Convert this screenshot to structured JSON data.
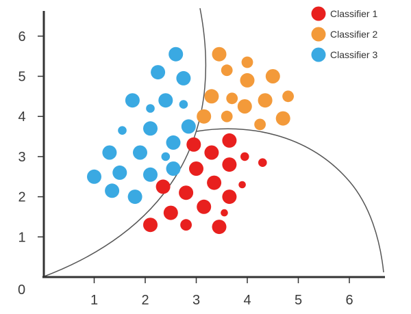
{
  "chart_data": {
    "type": "scatter",
    "title": "",
    "xlabel": "",
    "ylabel": "",
    "xlim": [
      0,
      6.7
    ],
    "ylim": [
      0,
      6.7
    ],
    "x_ticks": [
      "1",
      "2",
      "3",
      "4",
      "5",
      "6"
    ],
    "y_ticks": [
      "1",
      "2",
      "3",
      "4",
      "5",
      "6"
    ],
    "origin_label": "0",
    "grid": false,
    "legend_position": "top-right",
    "series": [
      {
        "name": "Classifier 1",
        "color": "#e8201e",
        "points": [
          {
            "x": 2.95,
            "y": 3.3,
            "s": 1.0
          },
          {
            "x": 3.3,
            "y": 3.1,
            "s": 1.0
          },
          {
            "x": 3.65,
            "y": 3.4,
            "s": 1.0
          },
          {
            "x": 3.95,
            "y": 3.0,
            "s": 0.6
          },
          {
            "x": 4.3,
            "y": 2.85,
            "s": 0.6
          },
          {
            "x": 3.0,
            "y": 2.7,
            "s": 1.0
          },
          {
            "x": 3.65,
            "y": 2.8,
            "s": 1.0
          },
          {
            "x": 2.35,
            "y": 2.25,
            "s": 1.0
          },
          {
            "x": 2.8,
            "y": 2.1,
            "s": 1.0
          },
          {
            "x": 3.35,
            "y": 2.35,
            "s": 1.0
          },
          {
            "x": 3.9,
            "y": 2.3,
            "s": 0.5
          },
          {
            "x": 3.65,
            "y": 2.0,
            "s": 1.0
          },
          {
            "x": 2.5,
            "y": 1.6,
            "s": 1.0
          },
          {
            "x": 3.15,
            "y": 1.75,
            "s": 1.0
          },
          {
            "x": 3.55,
            "y": 1.6,
            "s": 0.5
          },
          {
            "x": 2.1,
            "y": 1.3,
            "s": 1.0
          },
          {
            "x": 2.8,
            "y": 1.3,
            "s": 0.8
          },
          {
            "x": 3.45,
            "y": 1.25,
            "s": 1.0
          }
        ]
      },
      {
        "name": "Classifier 2",
        "color": "#f39a3a",
        "points": [
          {
            "x": 3.45,
            "y": 5.55,
            "s": 1.0
          },
          {
            "x": 4.0,
            "y": 5.35,
            "s": 0.8
          },
          {
            "x": 3.6,
            "y": 5.15,
            "s": 0.8
          },
          {
            "x": 4.5,
            "y": 5.0,
            "s": 1.0
          },
          {
            "x": 4.0,
            "y": 4.9,
            "s": 1.0
          },
          {
            "x": 3.3,
            "y": 4.5,
            "s": 1.0
          },
          {
            "x": 3.7,
            "y": 4.45,
            "s": 0.8
          },
          {
            "x": 4.35,
            "y": 4.4,
            "s": 1.0
          },
          {
            "x": 4.8,
            "y": 4.5,
            "s": 0.8
          },
          {
            "x": 3.95,
            "y": 4.25,
            "s": 1.0
          },
          {
            "x": 3.15,
            "y": 4.0,
            "s": 1.0
          },
          {
            "x": 3.6,
            "y": 4.0,
            "s": 0.8
          },
          {
            "x": 4.25,
            "y": 3.8,
            "s": 0.8
          },
          {
            "x": 4.7,
            "y": 3.95,
            "s": 1.0
          }
        ]
      },
      {
        "name": "Classifier 3",
        "color": "#3aa9e2",
        "points": [
          {
            "x": 2.6,
            "y": 5.55,
            "s": 1.0
          },
          {
            "x": 2.25,
            "y": 5.1,
            "s": 1.0
          },
          {
            "x": 2.75,
            "y": 4.95,
            "s": 1.0
          },
          {
            "x": 1.75,
            "y": 4.4,
            "s": 1.0
          },
          {
            "x": 2.4,
            "y": 4.4,
            "s": 1.0
          },
          {
            "x": 2.75,
            "y": 4.3,
            "s": 0.6
          },
          {
            "x": 2.1,
            "y": 4.2,
            "s": 0.6
          },
          {
            "x": 1.55,
            "y": 3.65,
            "s": 0.6
          },
          {
            "x": 2.1,
            "y": 3.7,
            "s": 1.0
          },
          {
            "x": 2.85,
            "y": 3.75,
            "s": 1.0
          },
          {
            "x": 2.55,
            "y": 3.35,
            "s": 1.0
          },
          {
            "x": 1.3,
            "y": 3.1,
            "s": 1.0
          },
          {
            "x": 1.9,
            "y": 3.1,
            "s": 1.0
          },
          {
            "x": 2.4,
            "y": 3.0,
            "s": 0.6
          },
          {
            "x": 1.0,
            "y": 2.5,
            "s": 1.0
          },
          {
            "x": 1.5,
            "y": 2.6,
            "s": 1.0
          },
          {
            "x": 2.1,
            "y": 2.55,
            "s": 1.0
          },
          {
            "x": 2.55,
            "y": 2.7,
            "s": 1.0
          },
          {
            "x": 1.35,
            "y": 2.15,
            "s": 1.0
          },
          {
            "x": 1.8,
            "y": 2.0,
            "s": 1.0
          }
        ]
      }
    ]
  }
}
